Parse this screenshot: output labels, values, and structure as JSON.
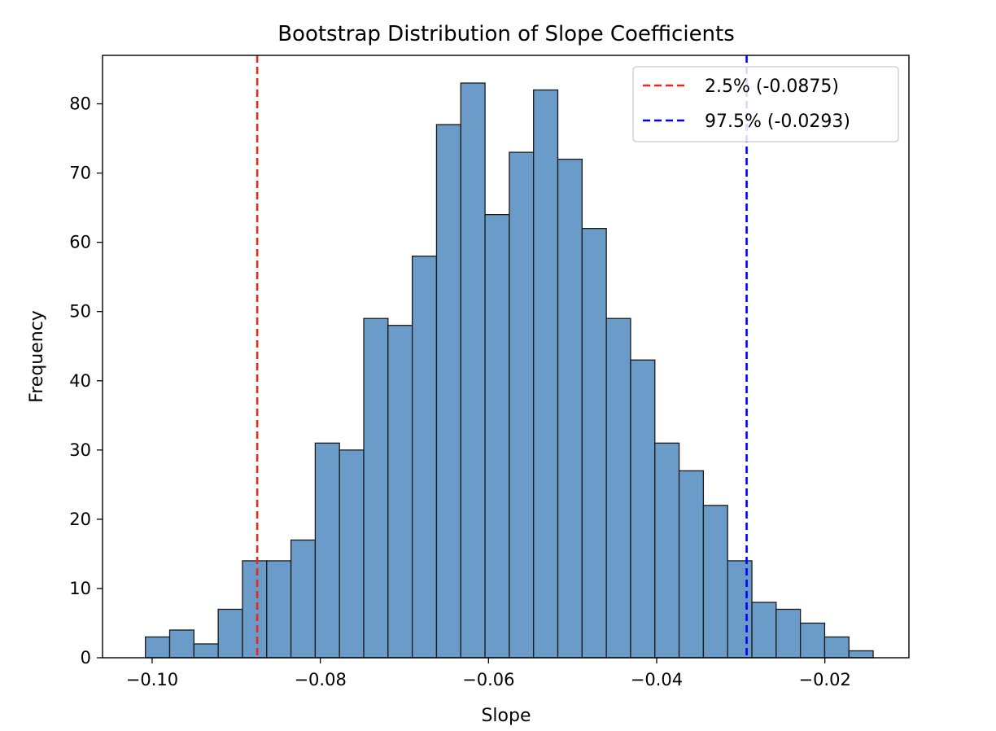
{
  "chart_data": {
    "type": "bar",
    "title": "Bootstrap Distribution of Slope Coefficients",
    "xlabel": "Slope",
    "ylabel": "Frequency",
    "xlim": [
      -0.1059,
      -0.01
    ],
    "ylim": [
      0,
      87
    ],
    "xticks": [
      -0.1,
      -0.08,
      -0.06,
      -0.04,
      -0.02
    ],
    "xtick_labels": [
      "−0.10",
      "−0.08",
      "−0.06",
      "−0.04",
      "−0.02"
    ],
    "yticks": [
      0,
      10,
      20,
      30,
      40,
      50,
      60,
      70,
      80
    ],
    "ytick_labels": [
      "0",
      "10",
      "20",
      "30",
      "40",
      "50",
      "60",
      "70",
      "80"
    ],
    "bins": {
      "start": -0.1008,
      "width": 0.002885,
      "counts": [
        3,
        4,
        2,
        7,
        14,
        14,
        17,
        31,
        30,
        49,
        48,
        58,
        77,
        83,
        64,
        73,
        82,
        72,
        62,
        49,
        43,
        31,
        27,
        22,
        14,
        8,
        7,
        5,
        3,
        1
      ]
    },
    "bar_color": "#6b9bc8",
    "bar_edge_color": "#1a1a1a",
    "grid": false,
    "legend_placement": "top-right",
    "vlines": [
      {
        "x": -0.0875,
        "color": "#e8291c",
        "label": "2.5% (-0.0875)"
      },
      {
        "x": -0.0293,
        "color": "#0000ff",
        "label": "97.5% (-0.0293)"
      }
    ]
  }
}
